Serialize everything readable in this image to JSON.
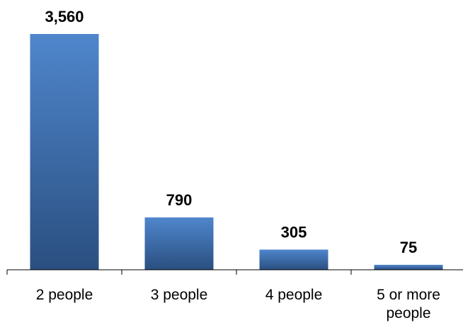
{
  "chart_data": {
    "type": "bar",
    "title": "",
    "xlabel": "",
    "ylabel": "",
    "categories": [
      "2 people",
      "3 people",
      "4 people",
      "5 or more people"
    ],
    "category_label_lines": [
      [
        "2 people"
      ],
      [
        "3 people"
      ],
      [
        "4 people"
      ],
      [
        "5 or more",
        "people"
      ]
    ],
    "values": [
      3560,
      790,
      305,
      75
    ],
    "value_labels": [
      "3,560",
      "790",
      "305",
      "75"
    ],
    "ylim": [
      0,
      3560
    ],
    "grid": false,
    "legend": "none",
    "colors": {
      "bar_top": "#4f86cc",
      "bar_bottom": "#2a4f80",
      "axis": "#000000",
      "text": "#000000"
    }
  }
}
